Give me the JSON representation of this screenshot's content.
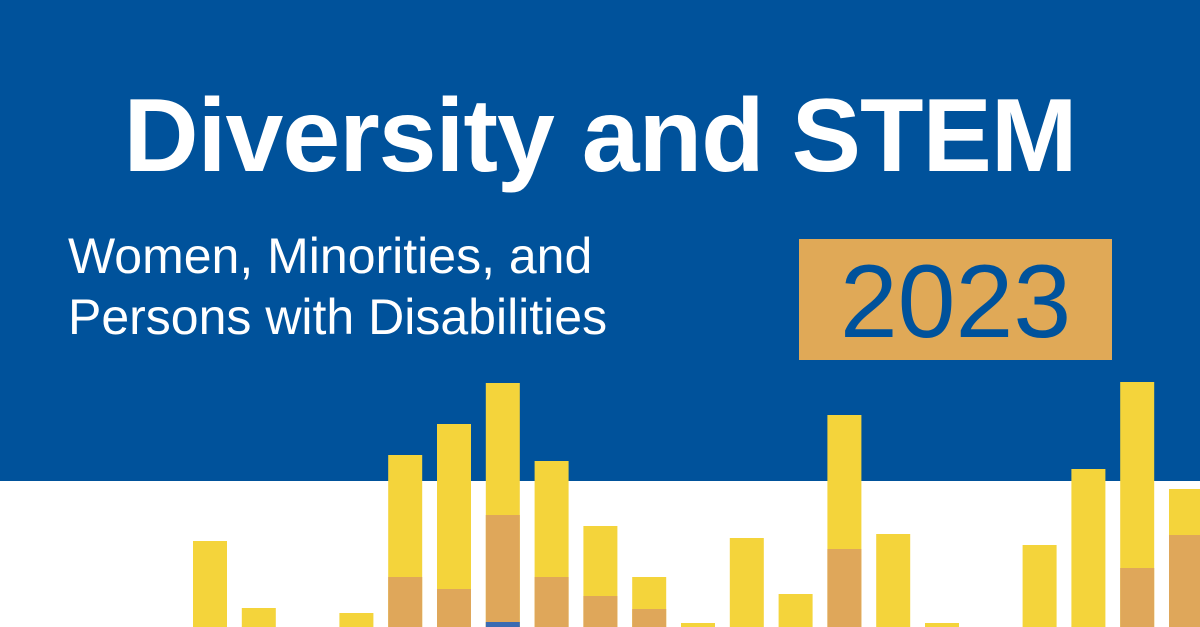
{
  "header": {
    "title": "Diversity and STEM",
    "subtitle_line1": "Women, Minorities, and",
    "subtitle_line2": "Persons with Disabilities",
    "year": "2023"
  },
  "colors": {
    "banner_blue": "#00529b",
    "bar_yellow": "#f4d43b",
    "bar_tan": "#dfa75a",
    "bar_blue": "#3a6bb2",
    "year_box": "#e0a957",
    "title_text": "#ffffff"
  },
  "decorative_bars": [
    {
      "yellow": 86,
      "tan": 0,
      "blue": 0
    },
    {
      "yellow": 19,
      "tan": 0,
      "blue": 0
    },
    {
      "yellow": 0,
      "tan": 0,
      "blue": 0
    },
    {
      "yellow": 14,
      "tan": 0,
      "blue": 0
    },
    {
      "yellow": 172,
      "tan": 50,
      "blue": 0
    },
    {
      "yellow": 203,
      "tan": 38,
      "blue": 0
    },
    {
      "yellow": 244,
      "tan": 112,
      "blue": 5
    },
    {
      "yellow": 166,
      "tan": 50,
      "blue": 0
    },
    {
      "yellow": 101,
      "tan": 31,
      "blue": 0
    },
    {
      "yellow": 50,
      "tan": 18,
      "blue": 0
    },
    {
      "yellow": 4,
      "tan": 0,
      "blue": 0
    },
    {
      "yellow": 89,
      "tan": 0,
      "blue": 0
    },
    {
      "yellow": 33,
      "tan": 0,
      "blue": 0
    },
    {
      "yellow": 212,
      "tan": 78,
      "blue": 0
    },
    {
      "yellow": 93,
      "tan": 0,
      "blue": 0
    },
    {
      "yellow": 4,
      "tan": 0,
      "blue": 0
    },
    {
      "yellow": 0,
      "tan": 0,
      "blue": 0
    },
    {
      "yellow": 82,
      "tan": 0,
      "blue": 0
    },
    {
      "yellow": 158,
      "tan": 0,
      "blue": 0
    },
    {
      "yellow": 245,
      "tan": 59,
      "blue": 0
    },
    {
      "yellow": 138,
      "tan": 92,
      "blue": 0
    }
  ]
}
